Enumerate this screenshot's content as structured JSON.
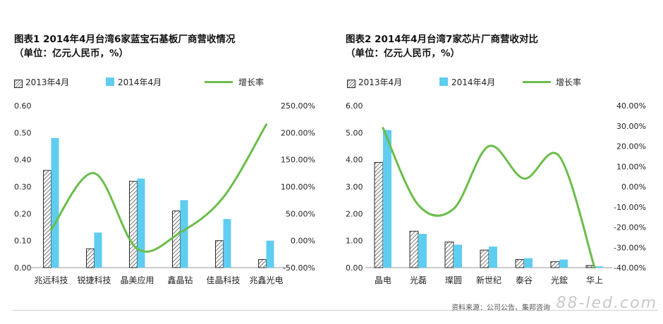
{
  "legend_labels": {
    "y2013": "2013年4月",
    "y2014": "2014年4月",
    "growth": "增长率"
  },
  "colors": {
    "bar2014": "#5fcdf0",
    "hatch": "#2a2a2a",
    "growth": "#6bbd4a",
    "axis": "#9a9a9a"
  },
  "source_text": "资料来源：公司公告、集邦咨询",
  "watermark": "88-led.com",
  "chart_data": [
    {
      "type": "bar",
      "title": "图表1  2014年4月台湾6家蓝宝石基板厂商营收情况",
      "subtitle": "（单位：亿元人民币，%）",
      "categories": [
        "兆远科技",
        "锐捷科技",
        "晶美应用",
        "鑫晶钻",
        "佳晶科技",
        "兆鑫光电"
      ],
      "series": [
        {
          "name": "2013年4月",
          "values": [
            0.36,
            0.07,
            0.32,
            0.21,
            0.1,
            0.03
          ]
        },
        {
          "name": "2014年4月",
          "values": [
            0.48,
            0.13,
            0.33,
            0.25,
            0.18,
            0.1
          ]
        },
        {
          "name": "增长率",
          "axis": "right",
          "values": [
            0.2,
            1.25,
            -0.15,
            0.15,
            0.8,
            2.15
          ]
        }
      ],
      "ylim": [
        0,
        0.6
      ],
      "yticks": [
        "0.00",
        "0.10",
        "0.20",
        "0.30",
        "0.40",
        "0.50",
        "0.60"
      ],
      "y2lim": [
        -0.5,
        2.5
      ],
      "y2ticks": [
        "-50.00%",
        "0.00%",
        "50.00%",
        "100.00%",
        "150.00%",
        "200.00%",
        "250.00%"
      ]
    },
    {
      "type": "bar",
      "title": "图表2  2014年4月台湾7家芯片厂商营收对比",
      "subtitle": "（单位：亿元人民币，%）",
      "categories": [
        "晶电",
        "光磊",
        "璨圆",
        "新世纪",
        "泰谷",
        "光鋐",
        "华上"
      ],
      "series": [
        {
          "name": "2013年4月",
          "values": [
            3.9,
            1.35,
            0.95,
            0.65,
            0.3,
            0.22,
            0.08
          ]
        },
        {
          "name": "2014年4月",
          "values": [
            5.1,
            1.25,
            0.85,
            0.78,
            0.35,
            0.3,
            0.05
          ]
        },
        {
          "name": "增长率",
          "axis": "right",
          "values": [
            0.29,
            -0.09,
            -0.11,
            0.2,
            0.04,
            0.15,
            -0.4
          ]
        }
      ],
      "ylim": [
        0,
        6
      ],
      "yticks": [
        "0.00",
        "1.00",
        "2.00",
        "3.00",
        "4.00",
        "5.00",
        "6.00"
      ],
      "y2lim": [
        -0.4,
        0.4
      ],
      "y2ticks": [
        "-40.00%",
        "-30.00%",
        "-20.00%",
        "-10.00%",
        "0.00%",
        "10.00%",
        "20.00%",
        "30.00%",
        "40.00%"
      ]
    }
  ]
}
